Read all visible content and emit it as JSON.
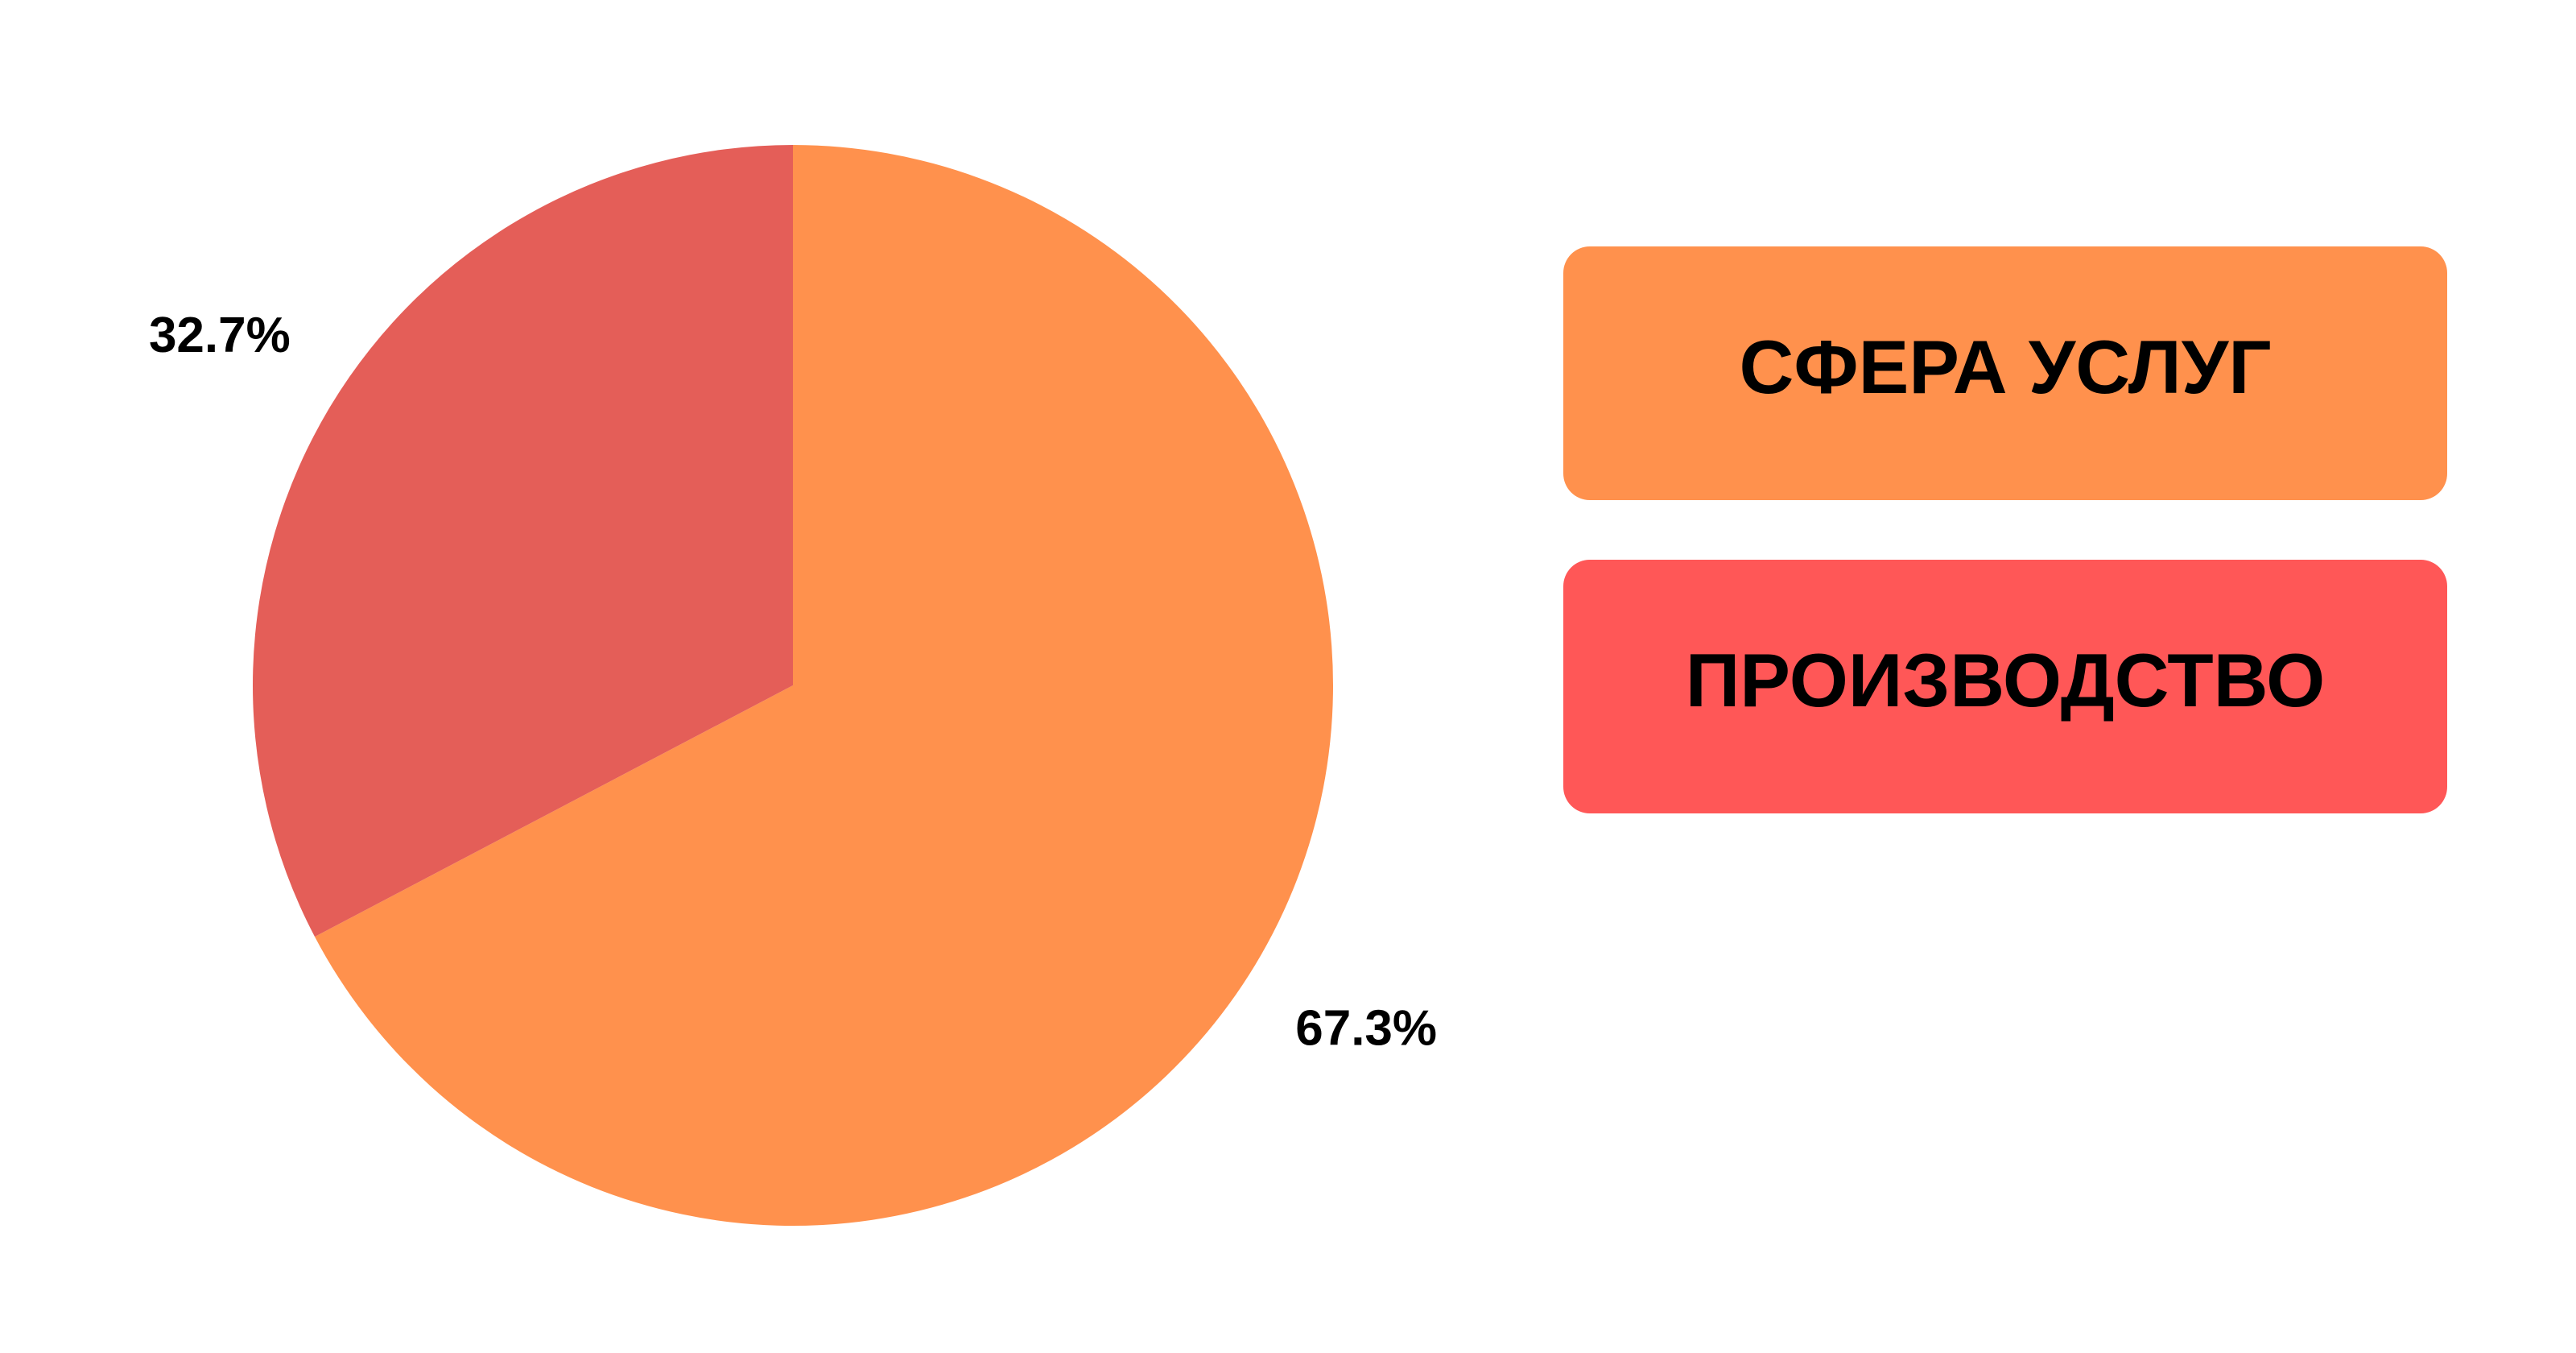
{
  "chart_data": {
    "type": "pie",
    "categories": [
      "СФЕРА УСЛУГ",
      "ПРОИЗВОДСТВО"
    ],
    "values": [
      67.3,
      32.7
    ],
    "value_labels": [
      "67.3%",
      "32.7%"
    ],
    "colors": [
      "#ff914d",
      "#e45e58"
    ],
    "legend_colors": [
      "#ff914d",
      "#ff5757"
    ]
  }
}
